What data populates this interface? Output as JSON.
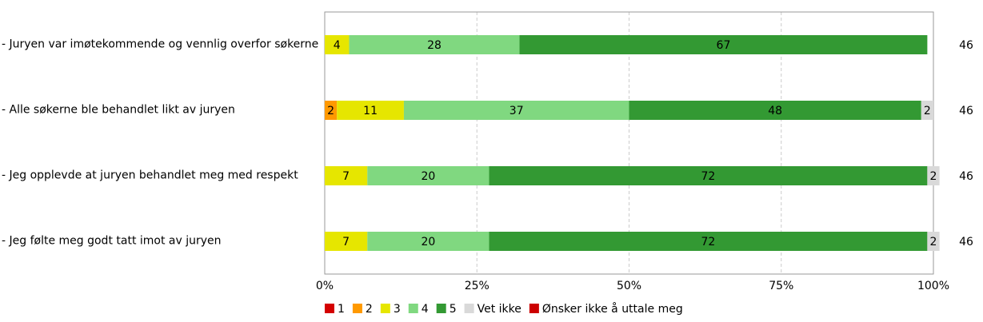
{
  "chart_data": {
    "type": "stacked-bar-horizontal",
    "categories": [
      "- Juryen var imøtekommende og vennlig overfor søkerne",
      "- Alle søkerne ble behandlet likt av juryen",
      "- Jeg opplevde at juryen behandlet meg med respekt",
      "- Jeg følte meg godt tatt imot av juryen"
    ],
    "series": [
      {
        "name": "1",
        "color": "#d40000",
        "values": [
          null,
          null,
          null,
          null
        ]
      },
      {
        "name": "2",
        "color": "#ff9900",
        "values": [
          null,
          2,
          null,
          null
        ]
      },
      {
        "name": "3",
        "color": "#e6e600",
        "values": [
          4,
          11,
          7,
          7
        ]
      },
      {
        "name": "4",
        "color": "#80d880",
        "values": [
          28,
          37,
          20,
          20
        ]
      },
      {
        "name": "5",
        "color": "#339933",
        "values": [
          67,
          48,
          72,
          72
        ]
      },
      {
        "name": "Vet ikke",
        "color": "#d9d9d9",
        "values": [
          null,
          2,
          2,
          2
        ]
      },
      {
        "name": "Ønsker ikke å uttale meg",
        "color": "#cc0000",
        "values": [
          null,
          null,
          null,
          null
        ]
      }
    ],
    "row_totals": [
      46,
      46,
      46,
      46
    ],
    "xlim": [
      0,
      100
    ],
    "xticks": [
      {
        "value": 0,
        "label": "0%"
      },
      {
        "value": 25,
        "label": "25%"
      },
      {
        "value": 50,
        "label": "50%"
      },
      {
        "value": 75,
        "label": "75%"
      },
      {
        "value": 100,
        "label": "100%"
      }
    ],
    "grid": true
  }
}
